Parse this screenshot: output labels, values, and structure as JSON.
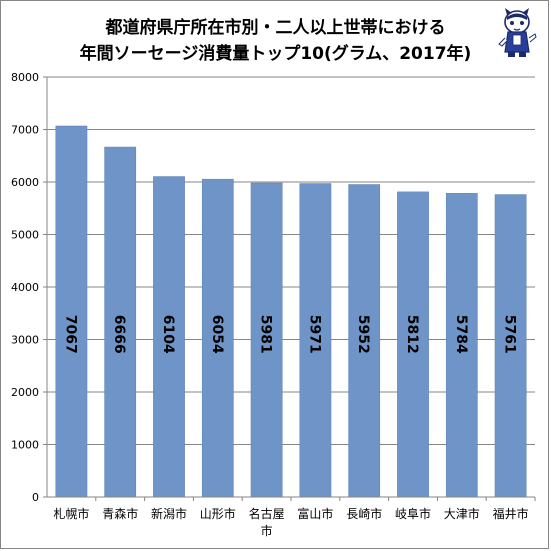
{
  "title": {
    "line1": "都道府県庁所在市別・二人以上世帯における",
    "line2": "年間ソーセージ消費量トップ10(グラム、2017年)"
  },
  "mascot_icon": "cat-mascot-icon",
  "colors": {
    "bar": "#6f95c8",
    "bar_edge": "#5a7fb2",
    "grid": "#868686",
    "axis": "#868686"
  },
  "chart_data": {
    "type": "bar",
    "title": "都道府県庁所在市別・二人以上世帯における年間ソーセージ消費量トップ10(グラム、2017年)",
    "categories": [
      "札幌市",
      "青森市",
      "新潟市",
      "山形市",
      "名古屋市",
      "富山市",
      "長崎市",
      "岐阜市",
      "大津市",
      "福井市"
    ],
    "category_lines": [
      [
        "札幌市"
      ],
      [
        "青森市"
      ],
      [
        "新潟市"
      ],
      [
        "山形市"
      ],
      [
        "名古屋",
        "市"
      ],
      [
        "富山市"
      ],
      [
        "長崎市"
      ],
      [
        "岐阜市"
      ],
      [
        "大津市"
      ],
      [
        "福井市"
      ]
    ],
    "values": [
      7067,
      6666,
      6104,
      6054,
      5981,
      5971,
      5952,
      5812,
      5784,
      5761
    ],
    "data_labels": [
      "7067",
      "6666",
      "6104",
      "6054",
      "5981",
      "5971",
      "5952",
      "5812",
      "5784",
      "5761"
    ],
    "y_ticks": [
      "0",
      "1000",
      "2000",
      "3000",
      "4000",
      "5000",
      "6000",
      "7000",
      "8000"
    ],
    "ylim": [
      0,
      8000
    ],
    "xlabel": "",
    "ylabel": "",
    "grid": true,
    "legend": false
  }
}
